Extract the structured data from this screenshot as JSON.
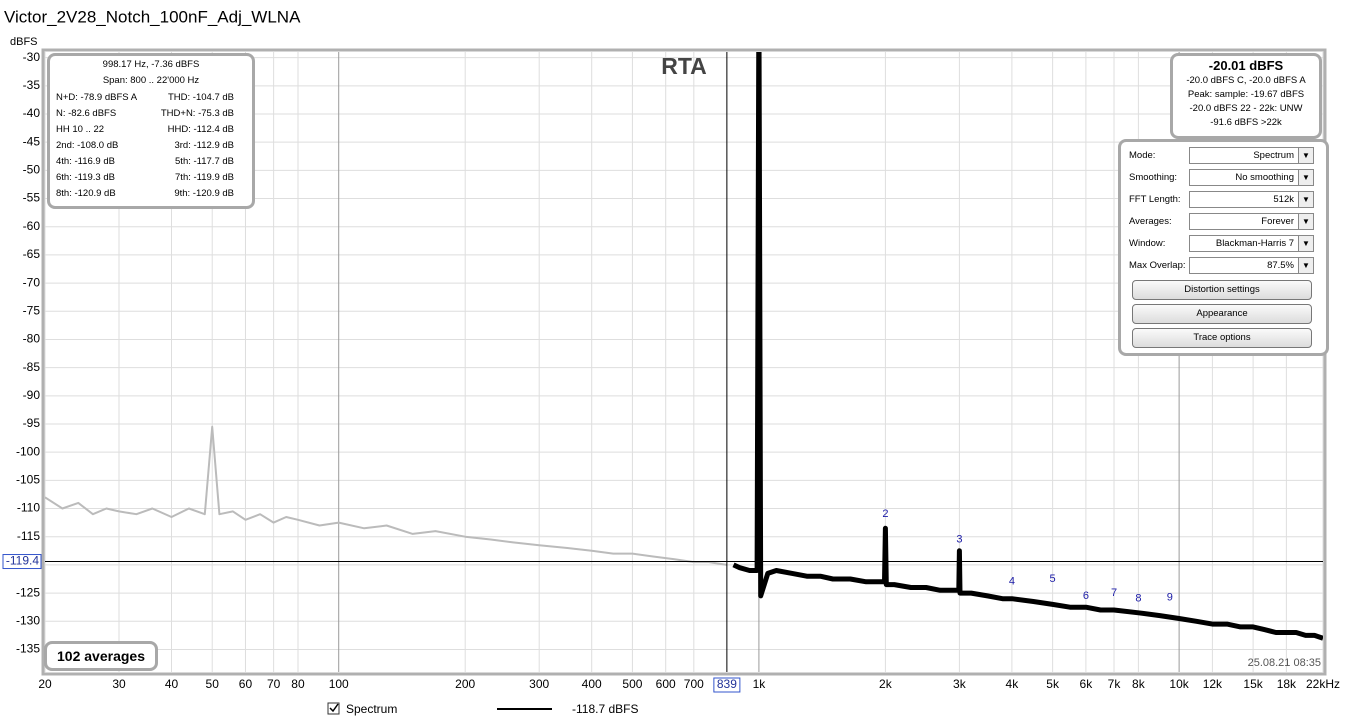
{
  "window_title": "Victor_2V28_Notch_100nF_Adj_WLNA",
  "chart_data": {
    "type": "line",
    "y_unit": "dBFS",
    "label": "RTA",
    "x_scale": "log",
    "grid": true,
    "xlim": [
      20,
      22000
    ],
    "ylim": [
      -139,
      -29
    ],
    "xticks": [
      20,
      30,
      40,
      50,
      60,
      70,
      80,
      100,
      200,
      300,
      400,
      500,
      600,
      700,
      {
        "value": 1000,
        "label": "1k"
      },
      {
        "value": 2000,
        "label": "2k"
      },
      {
        "value": 3000,
        "label": "3k"
      },
      {
        "value": 4000,
        "label": "4k"
      },
      {
        "value": 5000,
        "label": "5k"
      },
      {
        "value": 6000,
        "label": "6k"
      },
      {
        "value": 7000,
        "label": "7k"
      },
      {
        "value": 8000,
        "label": "8k"
      },
      {
        "value": 10000,
        "label": "10k"
      },
      {
        "value": 12000,
        "label": "12k"
      },
      {
        "value": 15000,
        "label": "15k"
      },
      {
        "value": 18000,
        "label": "18k"
      },
      {
        "value": 22000,
        "label": "22kHz"
      }
    ],
    "yticks": [
      -30,
      -35,
      -40,
      -45,
      -50,
      -55,
      -60,
      -65,
      -70,
      -75,
      -80,
      -85,
      -90,
      -95,
      -100,
      -105,
      -110,
      -115,
      -120,
      -125,
      -130,
      -135
    ],
    "x": [
      20,
      22,
      24,
      26,
      28,
      30,
      33,
      36,
      40,
      44,
      48,
      50,
      52,
      56,
      60,
      65,
      70,
      75,
      80,
      90,
      100,
      115,
      130,
      150,
      170,
      200,
      230,
      260,
      300,
      350,
      400,
      450,
      500,
      560,
      630,
      700,
      760,
      839,
      870,
      900,
      950,
      990,
      1000,
      1010,
      1050,
      1100,
      1200,
      1300,
      1400,
      1500,
      1650,
      1800,
      1950,
      1990,
      2000,
      2010,
      2100,
      2300,
      2500,
      2700,
      2900,
      2990,
      3000,
      3010,
      3200,
      3500,
      3800,
      4000,
      4500,
      5000,
      5500,
      6000,
      6500,
      7000,
      8000,
      9000,
      10000,
      11000,
      12000,
      13000,
      14000,
      15000,
      16000,
      17000,
      18000,
      19000,
      20000,
      21000,
      22000
    ],
    "series": [
      {
        "name": "Spectrum",
        "color": "#000000",
        "outside_span_color": "#bbbbbb",
        "values": [
          -108,
          -110,
          -109,
          -111,
          -110,
          -110.5,
          -111,
          -110,
          -111.5,
          -110,
          -111,
          -95.5,
          -111,
          -110.5,
          -112,
          -111,
          -112.5,
          -111.5,
          -112,
          -113,
          -112.5,
          -113.5,
          -113,
          -114.5,
          -114,
          -115,
          -115.5,
          -116,
          -116.5,
          -117,
          -117.5,
          -118,
          -118,
          -118.5,
          -119,
          -119.5,
          -119.5,
          -120,
          -120,
          -120.5,
          -121,
          -121,
          -20,
          -125.5,
          -121.5,
          -121,
          -121.5,
          -122,
          -122,
          -122.5,
          -122.5,
          -123,
          -123,
          -123,
          -113.5,
          -123.5,
          -123.5,
          -124,
          -124,
          -124.5,
          -124.5,
          -124.5,
          -117.5,
          -125,
          -125,
          -125.5,
          -126,
          -126,
          -126.5,
          -127,
          -127.5,
          -127.5,
          -128,
          -128,
          -128.5,
          -129,
          -129.5,
          -130,
          -130.5,
          -130.5,
          -131,
          -131,
          -131.5,
          -132,
          -132,
          -132,
          -132.5,
          -132.5,
          -133
        ]
      }
    ],
    "cursor": {
      "x": 839,
      "y": -119.4
    },
    "harmonic_markers": [
      {
        "label": "2",
        "x": 2000,
        "y": -111
      },
      {
        "label": "3",
        "x": 3000,
        "y": -115.5
      },
      {
        "label": "4",
        "x": 4000,
        "y": -123
      },
      {
        "label": "5",
        "x": 5000,
        "y": -122.5
      },
      {
        "label": "6",
        "x": 6000,
        "y": -125.5
      },
      {
        "label": "7",
        "x": 7000,
        "y": -125
      },
      {
        "label": "8",
        "x": 8000,
        "y": -126
      },
      {
        "label": "9",
        "x": 9500,
        "y": -125.8
      }
    ],
    "legend_reading": "-118.7 dBFS"
  },
  "info_box": {
    "lines": [
      "998.17 Hz, -7.36 dBFS",
      "Span: 800 .. 22'000 Hz"
    ],
    "rows": [
      [
        "N+D: -78.9 dBFS A",
        "THD: -104.7 dB"
      ],
      [
        "N: -82.6 dBFS",
        "THD+N: -75.3 dB"
      ],
      [
        "HH 10 .. 22",
        "HHD: -112.4 dB"
      ],
      [
        "2nd: -108.0 dB",
        "3rd: -112.9 dB"
      ],
      [
        "4th: -116.9 dB",
        "5th: -117.7 dB"
      ],
      [
        "6th: -119.3 dB",
        "7th: -119.9 dB"
      ],
      [
        "8th: -120.9 dB",
        "9th: -120.9 dB"
      ]
    ]
  },
  "level_box": {
    "level": "-20.01 dBFS",
    "lines": [
      "-20.0 dBFS C, -20.0 dBFS A",
      "Peak: sample: -19.67 dBFS",
      "-20.0 dBFS 22 - 22k: UNW",
      "-91.6 dBFS >22k"
    ]
  },
  "controls": {
    "fields": [
      [
        "Mode:",
        "Spectrum"
      ],
      [
        "Smoothing:",
        "No  smoothing"
      ],
      [
        "FFT Length:",
        "512k"
      ],
      [
        "Averages:",
        "Forever"
      ],
      [
        "Window:",
        "Blackman-Harris 7"
      ],
      [
        "Max Overlap:",
        "87.5%"
      ]
    ],
    "buttons": [
      "Distortion settings",
      "Appearance",
      "Trace options"
    ]
  },
  "averages": "102 averages",
  "timestamp": "25.08.21 08:35"
}
